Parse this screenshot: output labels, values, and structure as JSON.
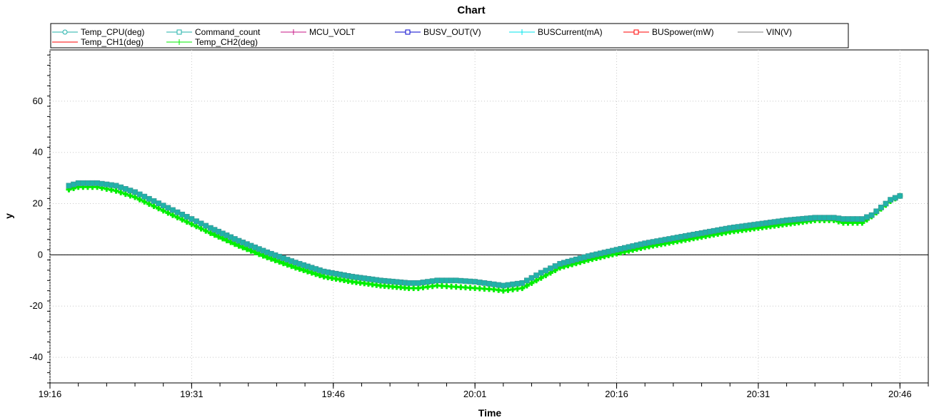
{
  "chart_data": {
    "type": "line",
    "title": "Chart",
    "xlabel": "Time",
    "ylabel": "y",
    "xlim": [
      "19:16",
      "20:49"
    ],
    "ylim": [
      -50,
      80
    ],
    "x_ticks": [
      "19:16",
      "19:31",
      "19:46",
      "20:01",
      "20:16",
      "20:31",
      "20:46"
    ],
    "y_ticks": [
      -40,
      -20,
      0,
      20,
      40,
      60
    ],
    "grid": true,
    "legend_position": "top",
    "legend": [
      {
        "name": "Temp_CPU(deg)",
        "color": "#20b2aa",
        "marker": "circle"
      },
      {
        "name": "Command_count",
        "color": "#20b2aa",
        "marker": "square"
      },
      {
        "name": "MCU_VOLT",
        "color": "#c71585",
        "marker": "plus"
      },
      {
        "name": "BUSV_OUT(V)",
        "color": "#0000cd",
        "marker": "square"
      },
      {
        "name": "BUSCurrent(mA)",
        "color": "#00e5ee",
        "marker": "plus"
      },
      {
        "name": "BUSpower(mW)",
        "color": "#ff0000",
        "marker": "square"
      },
      {
        "name": "VIN(V)",
        "color": "#808080",
        "marker": "none"
      },
      {
        "name": "Temp_CH1(deg)",
        "color": "#ff0000",
        "marker": "none"
      },
      {
        "name": "Temp_CH2(deg)",
        "color": "#00ee00",
        "marker": "plus"
      }
    ],
    "series": [
      {
        "name": "Temp_CH2(deg)",
        "color": "#00ee00",
        "x": [
          "19:18",
          "19:19",
          "19:21",
          "19:23",
          "19:25",
          "19:27",
          "19:29",
          "19:31",
          "19:33",
          "19:36",
          "19:39",
          "19:42",
          "19:45",
          "19:48",
          "19:51",
          "19:54",
          "19:55",
          "19:57",
          "19:59",
          "20:01",
          "20:03",
          "20:04",
          "20:06",
          "20:08",
          "20:10",
          "20:13",
          "20:16",
          "20:19",
          "20:22",
          "20:25",
          "20:28",
          "20:31",
          "20:34",
          "20:37",
          "20:39",
          "20:40",
          "20:42",
          "20:43",
          "20:44",
          "20:45",
          "20:46"
        ],
        "values": [
          25.5,
          26.5,
          26.5,
          25,
          22.5,
          19,
          15.5,
          12,
          8.5,
          3.5,
          -1,
          -5,
          -8.5,
          -10.5,
          -12,
          -13,
          -13,
          -12,
          -12.5,
          -13,
          -13.5,
          -14,
          -13,
          -9,
          -5,
          -2,
          0.5,
          3,
          5,
          7,
          9,
          10.5,
          12,
          13.5,
          13.5,
          12.5,
          12.5,
          15,
          18,
          21,
          23
        ]
      },
      {
        "name": "Temp_CPU(deg)",
        "color": "#20b2aa",
        "x": [
          "19:18",
          "19:19",
          "19:21",
          "19:23",
          "19:25",
          "19:27",
          "19:29",
          "19:31",
          "19:33",
          "19:36",
          "19:39",
          "19:42",
          "19:45",
          "19:48",
          "19:51",
          "19:54",
          "19:55",
          "19:57",
          "19:59",
          "20:01",
          "20:03",
          "20:04",
          "20:06",
          "20:08",
          "20:10",
          "20:13",
          "20:16",
          "20:19",
          "20:22",
          "20:25",
          "20:28",
          "20:31",
          "20:34",
          "20:37",
          "20:39",
          "20:40",
          "20:42",
          "20:43",
          "20:44",
          "20:45",
          "20:46"
        ],
        "values": [
          27,
          28,
          28,
          27,
          24.5,
          21,
          17.5,
          14,
          10.5,
          5.5,
          1,
          -3,
          -6.5,
          -8.5,
          -10,
          -11,
          -11,
          -10,
          -10,
          -10.5,
          -11.5,
          -12,
          -11,
          -7,
          -3.5,
          -0.5,
          2,
          4.5,
          6.5,
          8.5,
          10.5,
          12,
          13.5,
          14.5,
          14.5,
          14,
          14,
          15.5,
          18.5,
          21.5,
          23
        ]
      }
    ]
  }
}
